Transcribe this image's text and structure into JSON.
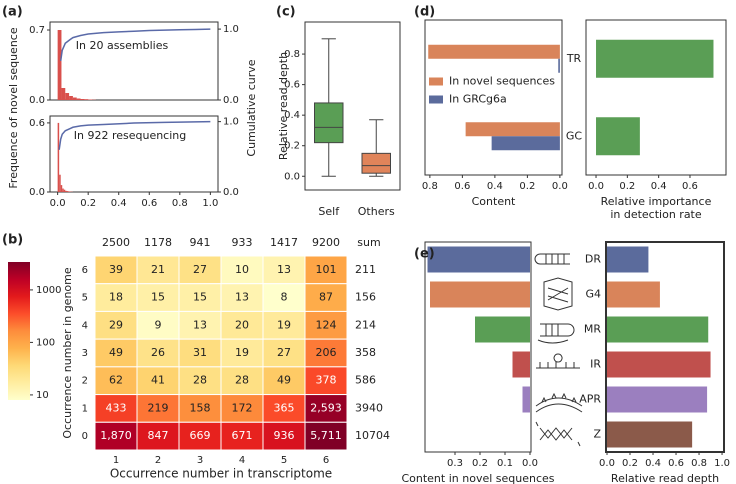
{
  "chart_data": [
    {
      "type": "histogram",
      "panel_label": "(a)",
      "ylabel": "Frequence of novel sequence",
      "y2label": "Cumulative curve",
      "annotation": "In 20 assemblies",
      "color": "#d9504c",
      "bins": [
        0,
        0.025,
        0.05,
        0.075,
        0.1,
        0.125,
        0.15,
        0.175,
        0.2,
        0.225,
        0.25
      ],
      "counts": [
        0.7,
        0.12,
        0.07,
        0.04,
        0.025,
        0.015,
        0.01,
        0.008,
        0.005,
        0.003
      ],
      "cumulative": {
        "color": "#5a6aa8",
        "axis": "y2",
        "x": [
          0.02,
          0.03,
          0.05,
          0.08,
          0.1,
          0.15,
          0.2,
          0.3,
          0.4,
          0.5,
          0.6,
          0.7,
          0.8,
          0.9,
          1.0
        ],
        "y": [
          0.55,
          0.7,
          0.8,
          0.85,
          0.88,
          0.91,
          0.93,
          0.95,
          0.96,
          0.97,
          0.98,
          0.985,
          0.99,
          0.995,
          1.0
        ]
      },
      "xlim": [
        -0.05,
        1.05
      ],
      "ylim": [
        0,
        0.78
      ],
      "yticks": [
        {
          "value": 0,
          "label": "0.0"
        },
        0.7
      ],
      "y2lim": [
        0,
        1.1
      ],
      "y2ticks": [
        {
          "value": 0,
          "label": "0.0"
        },
        {
          "value": 1,
          "label": "1.0"
        }
      ]
    },
    {
      "type": "histogram",
      "annotation": "In 922 resequencing",
      "color": "#d9504c",
      "bins": [
        0,
        0.01,
        0.02,
        0.03,
        0.04,
        0.05,
        0.06,
        0.07,
        0.08,
        0.09,
        0.1
      ],
      "counts": [
        0.6,
        0.15,
        0.06,
        0.03,
        0.02,
        0.01,
        0.008,
        0.005,
        0.003,
        0.002
      ],
      "cumulative": {
        "color": "#5a6aa8",
        "axis": "y2",
        "x": [
          0.01,
          0.02,
          0.03,
          0.05,
          0.08,
          0.1,
          0.15,
          0.2,
          0.3,
          0.5,
          0.7,
          1.0
        ],
        "y": [
          0.6,
          0.75,
          0.82,
          0.87,
          0.9,
          0.92,
          0.94,
          0.95,
          0.96,
          0.98,
          0.99,
          1.0
        ]
      },
      "xlim": [
        -0.05,
        1.05
      ],
      "xticks": [
        {
          "value": 0,
          "label": "0.0"
        },
        0.2,
        0.4,
        0.6,
        0.8,
        {
          "value": 1,
          "label": "1.0"
        }
      ],
      "ylim": [
        0,
        0.66
      ],
      "yticks": [
        {
          "value": 0,
          "label": "0.0"
        },
        0.6
      ],
      "y2lim": [
        0,
        1.08
      ],
      "y2ticks": [
        {
          "value": 0,
          "label": "0.0"
        },
        {
          "value": 1,
          "label": "1.0"
        }
      ]
    },
    {
      "type": "heatmap",
      "panel_label": "(b)",
      "xlabel": "Occurrence number in transcriptome",
      "ylabel": "Occurrence number in genome",
      "x": [
        1,
        2,
        3,
        4,
        5,
        6
      ],
      "y": [
        6,
        5,
        4,
        3,
        2,
        1,
        0
      ],
      "values": [
        [
          39,
          21,
          27,
          10,
          13,
          101
        ],
        [
          18,
          15,
          15,
          13,
          8,
          87
        ],
        [
          29,
          9,
          13,
          20,
          19,
          124
        ],
        [
          49,
          26,
          31,
          19,
          27,
          206
        ],
        [
          62,
          41,
          28,
          28,
          49,
          378
        ],
        [
          433,
          219,
          158,
          172,
          365,
          2593
        ],
        [
          1870,
          847,
          669,
          671,
          936,
          5711
        ]
      ],
      "value_labels": [
        [
          null,
          null,
          null,
          null,
          null,
          null
        ],
        [
          null,
          null,
          null,
          null,
          null,
          null
        ],
        [
          null,
          null,
          null,
          null,
          null,
          null
        ],
        [
          null,
          null,
          null,
          null,
          null,
          null
        ],
        [
          null,
          null,
          null,
          null,
          null,
          null
        ],
        [
          null,
          null,
          null,
          null,
          null,
          "2,593"
        ],
        [
          "1,870",
          null,
          null,
          null,
          null,
          "5,711"
        ]
      ],
      "col_sums": [
        2500,
        1178,
        941,
        933,
        1417,
        9200
      ],
      "row_sums": [
        211,
        156,
        214,
        358,
        586,
        3940,
        10704
      ],
      "sum_label": "sum",
      "colorbar": {
        "scale": "log",
        "lim": [
          8,
          3400
        ],
        "ticks": [
          10,
          100,
          1000
        ],
        "colors": [
          "#ffffcc",
          "#ffeda0",
          "#fed976",
          "#feb24c",
          "#fd8d3c",
          "#fc4e2a",
          "#e31a1c",
          "#bd0026",
          "#800026"
        ]
      }
    },
    {
      "type": "box",
      "panel_label": "(c)",
      "ylabel": "Relative read depth",
      "categories": [
        "Self",
        "Others"
      ],
      "boxes": [
        {
          "whislo": 0,
          "q1": 0.22,
          "med": 0.32,
          "q3": 0.48,
          "whishi": 0.9,
          "color": "#5a9e55"
        },
        {
          "whislo": 0,
          "q1": 0.02,
          "med": 0.07,
          "q3": 0.15,
          "whishi": 0.37,
          "color": "#e0845a"
        }
      ],
      "ylim": [
        -0.09,
        1.01
      ],
      "yticks": [
        {
          "value": 0,
          "label": "0.0"
        },
        0.2,
        0.4,
        0.6,
        0.8
      ]
    },
    {
      "type": "barh",
      "panel_label": "(d)",
      "xlabel": "Content",
      "categories": [
        "TR",
        "GC"
      ],
      "legend": "center left",
      "series": [
        {
          "name": "In novel sequences",
          "color": "#d9845a",
          "values": [
            0.81,
            0.58
          ]
        },
        {
          "name": "In GRCg6a",
          "color": "#5b6b9c",
          "values": [
            0.01,
            0.42
          ]
        }
      ],
      "xlim": [
        0.83,
        -0.013
      ],
      "xticks": [
        0.8,
        0.6,
        0.4,
        0.2,
        {
          "value": 0,
          "label": "0.0"
        }
      ]
    },
    {
      "type": "barh",
      "xlabel": [
        "Relative importance",
        "in detection rate"
      ],
      "color": "#5a9e55",
      "values": [
        0.75,
        0.28
      ],
      "xlim": [
        -0.064,
        0.83
      ],
      "xticks": [
        {
          "value": 0,
          "label": "0.0"
        },
        0.2,
        0.4,
        0.6
      ]
    },
    {
      "type": "barh",
      "panel_label": "(e)",
      "xlabel": "Content in novel sequences",
      "values": [
        0.41,
        0.4,
        0.22,
        0.07,
        0.03,
        0.0
      ],
      "colors": [
        "#5b6b9c",
        "#d9845a",
        "#5a9e55",
        "#c0504d",
        "#9b7fbf",
        "#8b5a4a"
      ],
      "xlim": [
        0.42,
        -0.004
      ],
      "xticks": [
        0.3,
        0.2,
        0.1,
        {
          "value": 0,
          "label": "0.0"
        }
      ]
    },
    {
      "type": "barh",
      "xlabel": "Relative read depth",
      "categories": [
        "DR",
        "G4",
        "MR",
        "IR",
        "APR",
        "Z"
      ],
      "values": [
        0.36,
        0.46,
        0.88,
        0.9,
        0.87,
        0.74
      ],
      "colors": [
        "#5b6b9c",
        "#d9845a",
        "#5a9e55",
        "#c0504d",
        "#9b7fbf",
        "#8b5a4a"
      ],
      "xlim": [
        -0.0087,
        1.017
      ],
      "xticks": [
        {
          "value": 0,
          "label": "0.0"
        },
        0.2,
        0.4,
        0.6,
        0.8,
        {
          "value": 1,
          "label": "1.0"
        }
      ]
    }
  ]
}
